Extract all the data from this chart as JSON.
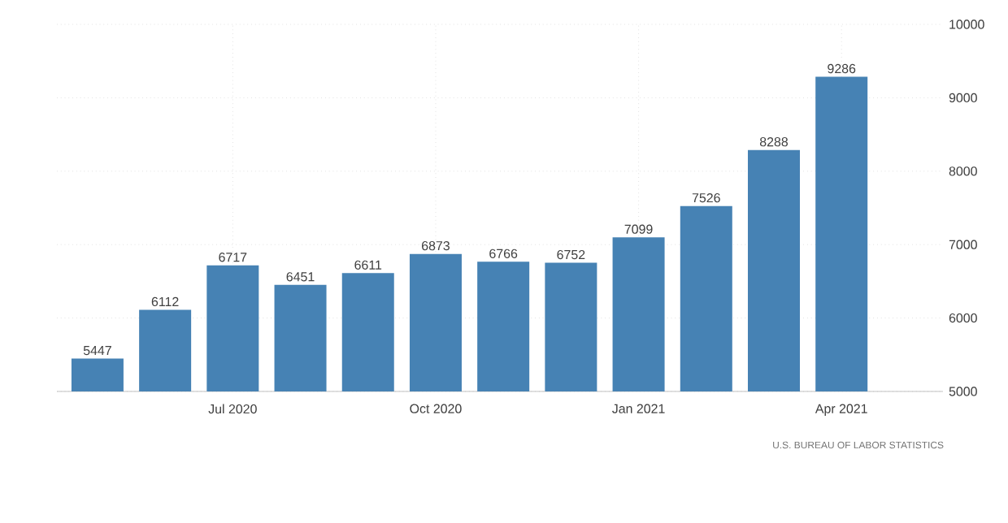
{
  "chart_data": {
    "type": "bar",
    "categories": [
      null,
      null,
      "Jul 2020",
      null,
      null,
      "Oct 2020",
      null,
      null,
      "Jan 2021",
      null,
      null,
      "Apr 2021"
    ],
    "values": [
      5447,
      6112,
      6717,
      6451,
      6611,
      6873,
      6766,
      6752,
      7099,
      7526,
      8288,
      9286
    ],
    "color": "#4682b4",
    "ylim": [
      5000,
      10000
    ],
    "yticks": [
      5000,
      6000,
      7000,
      8000,
      9000,
      10000
    ],
    "grid": true,
    "data_labels": true,
    "annotations": [
      "U.S. BUREAU OF LABOR STATISTICS"
    ]
  }
}
